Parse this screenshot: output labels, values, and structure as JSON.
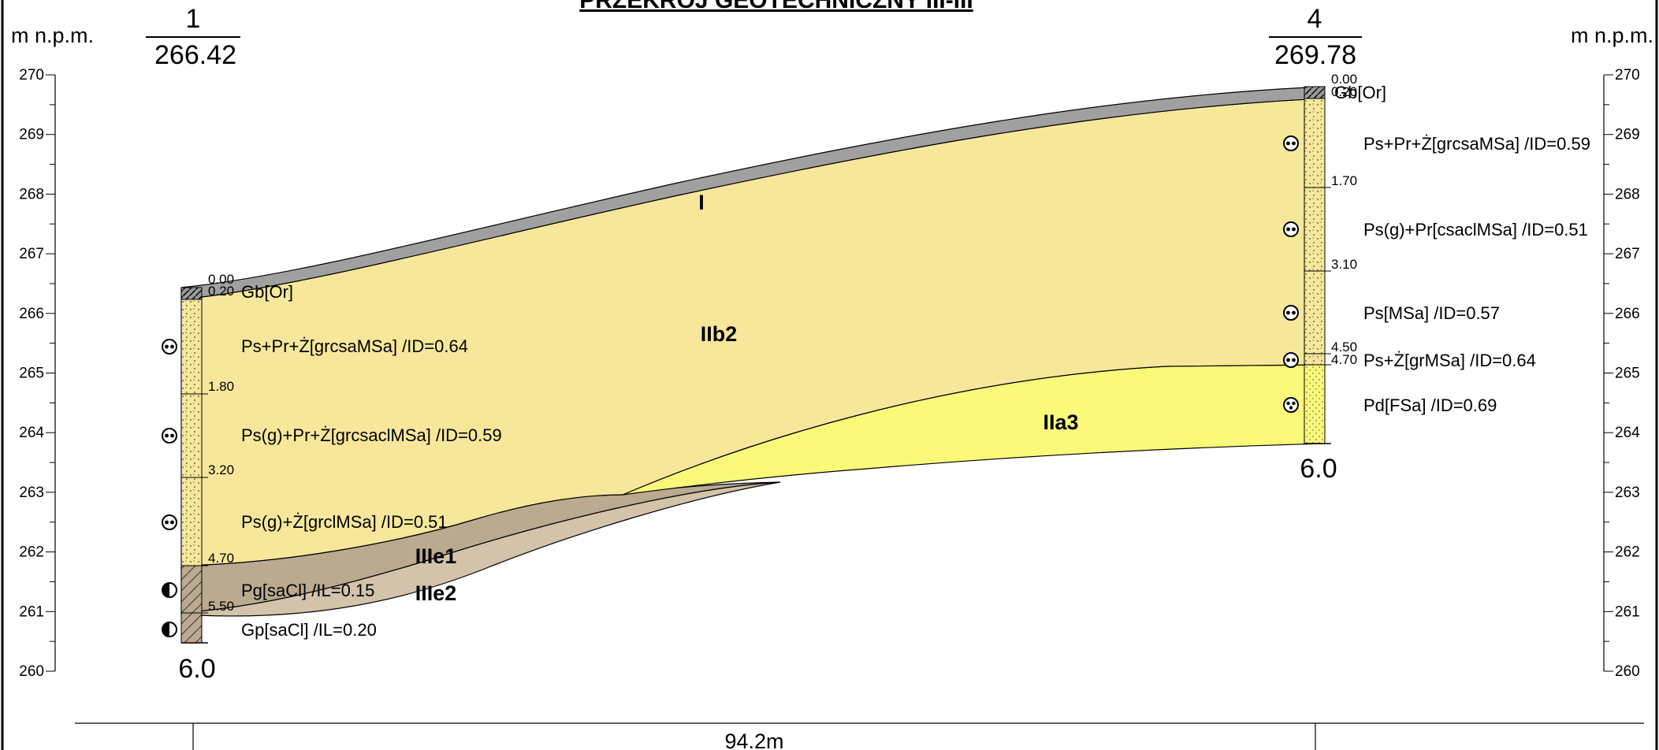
{
  "title": "PRZEKRÓJ GEOTECHNICZNY III-III",
  "axis_unit": "m n.p.m.",
  "axis": {
    "min": 260,
    "max": 270,
    "ticks": [
      "260",
      "261",
      "262",
      "263",
      "264",
      "265",
      "266",
      "267",
      "268",
      "269",
      "270"
    ]
  },
  "distance_label": "94.2m",
  "colors": {
    "humus": "#a0a0a0",
    "sand_IIb2": "#f7e79a",
    "sand_IIa3": "#fbf97a",
    "clay_IIIe1": "#b9aa90",
    "clay_IIIe2": "#d2c3aa"
  },
  "boreholes": [
    {
      "number": "1",
      "elevation": "266.42",
      "total_depth": "6.0",
      "depths": [
        "0.00",
        "0.20",
        "1.80",
        "3.20",
        "4.70",
        "5.50"
      ],
      "layers": [
        {
          "label": "Gb[Or]",
          "icon": "none"
        },
        {
          "label": "Ps+Pr+Ż[grcsaMSa] /ID=0.64",
          "icon": "dense-sand-icon"
        },
        {
          "label": "Ps(g)+Pr+Ż[grcsaclMSa] /ID=0.59",
          "icon": "dense-sand-icon"
        },
        {
          "label": "Ps(g)+Ż[grclMSa] /ID=0.51",
          "icon": "dense-sand-icon"
        },
        {
          "label": "Pg[saCl] /IL=0.15",
          "icon": "half-circle-icon"
        },
        {
          "label": "Gp[saCl] /IL=0.20",
          "icon": "half-circle-icon"
        }
      ]
    },
    {
      "number": "4",
      "elevation": "269.78",
      "total_depth": "6.0",
      "depths": [
        "0.00",
        "0.20",
        "1.70",
        "3.10",
        "4.50",
        "4.70"
      ],
      "layers": [
        {
          "label": "Gb[Or]",
          "icon": "none"
        },
        {
          "label": "Ps+Pr+Ż[grcsaMSa] /ID=0.59",
          "icon": "dense-sand-icon"
        },
        {
          "label": "Ps(g)+Pr[csaclMSa] /ID=0.51",
          "icon": "dense-sand-icon"
        },
        {
          "label": "Ps[MSa] /ID=0.57",
          "icon": "dense-sand-icon"
        },
        {
          "label": "Ps+Ż[grMSa] /ID=0.64",
          "icon": "dense-sand-icon"
        },
        {
          "label": "Pd[FSa] /ID=0.69",
          "icon": "medium-sand-icon"
        }
      ]
    }
  ],
  "geotechnical_layers": [
    "I",
    "IIb2",
    "IIa3",
    "IIIe1",
    "IIIe2"
  ]
}
